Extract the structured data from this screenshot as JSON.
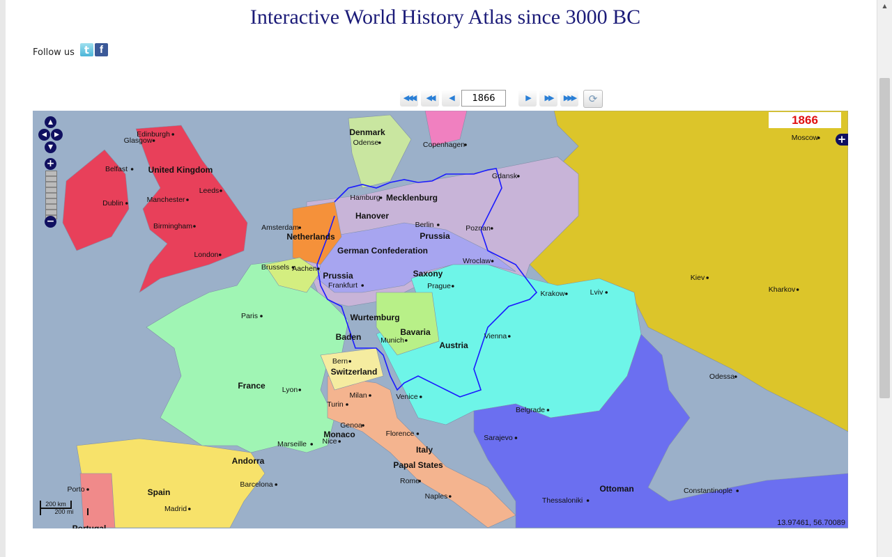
{
  "title": "Interactive World History Atlas since 3000 BC",
  "follow": {
    "label": "Follow us",
    "icons": [
      "twitter-icon",
      "facebook-icon"
    ]
  },
  "nav": {
    "year_value": "1866",
    "buttons": [
      "first",
      "back-fast",
      "back",
      "forward",
      "forward-fast",
      "last",
      "refresh"
    ]
  },
  "map": {
    "year_display": "1866",
    "coordinates": "13.97461, 56.70089",
    "scale": {
      "km": "200 km",
      "mi": "200 mi"
    },
    "colors": {
      "sea": "#9bb0c9",
      "russia": "#dcc52a",
      "uk": "#e8405a",
      "france": "#a0f5b4",
      "spain": "#f7e26a",
      "portugal": "#f08a8a",
      "italy": "#f4b48f",
      "austria": "#6ef5e8",
      "ottoman": "#6b6ff0",
      "german_confederation": "#c8b4d8",
      "prussia": "#a7a5f0",
      "denmark": "#c9e6a0",
      "sweden": "#f080c0",
      "netherlands": "#f5913a",
      "belgium": "#d4ee80",
      "switzerland": "#f5eca0",
      "bavaria": "#b8f088",
      "border": "#1a1aff",
      "year": "#e01010"
    },
    "labels": [
      "Edinburgh",
      "Glasgow",
      "Belfast",
      "United Kingdom",
      "Leeds",
      "Dublin",
      "Manchester",
      "Birmingham",
      "London",
      "Amsterdam",
      "Netherlands",
      "Brussels",
      "Aachen",
      "Denmark",
      "Odense",
      "Copenhagen",
      "Gdansk",
      "Hamburg",
      "Mecklenburg",
      "Hanover",
      "Berlin",
      "Prussia",
      "Poznan",
      "German Confederation",
      "Wroclaw",
      "Saxony",
      "Prussia",
      "Frankfurt",
      "Prague",
      "Krakow",
      "Lviv",
      "Kiev",
      "Kharkov",
      "Moscow",
      "Paris",
      "Wurtemburg",
      "Bavaria",
      "Baden",
      "Munich",
      "Vienna",
      "Austria",
      "Bern",
      "Switzerland",
      "France",
      "Lyon",
      "Odessa",
      "Milan",
      "Venice",
      "Turin",
      "Belgrade",
      "Genoa",
      "Florence",
      "Monaco",
      "Sarajevo",
      "Nice",
      "Marseille",
      "Italy",
      "Andorra",
      "Papal States",
      "Rome",
      "Barcelona",
      "Porto",
      "Ottoman",
      "Constantinople",
      "Spain",
      "Naples",
      "Thessaloniki",
      "Madrid",
      "Portugal"
    ]
  }
}
